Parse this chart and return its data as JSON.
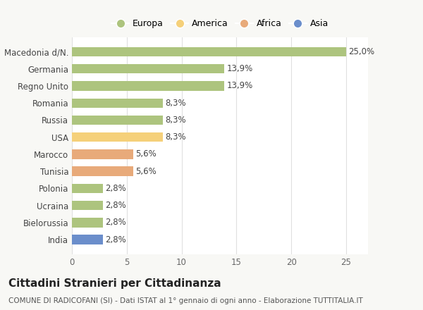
{
  "categories": [
    "Macedonia d/N.",
    "Germania",
    "Regno Unito",
    "Romania",
    "Russia",
    "USA",
    "Marocco",
    "Tunisia",
    "Polonia",
    "Ucraina",
    "Bielorussia",
    "India"
  ],
  "values": [
    25.0,
    13.9,
    13.9,
    8.3,
    8.3,
    8.3,
    5.6,
    5.6,
    2.8,
    2.8,
    2.8,
    2.8
  ],
  "labels": [
    "25,0%",
    "13,9%",
    "13,9%",
    "8,3%",
    "8,3%",
    "8,3%",
    "5,6%",
    "5,6%",
    "2,8%",
    "2,8%",
    "2,8%",
    "2,8%"
  ],
  "colors": [
    "#adc47e",
    "#adc47e",
    "#adc47e",
    "#adc47e",
    "#adc47e",
    "#f5d07a",
    "#e8aa7a",
    "#e8aa7a",
    "#adc47e",
    "#adc47e",
    "#adc47e",
    "#6b8ecb"
  ],
  "legend_entries": [
    {
      "label": "Europa",
      "color": "#adc47e"
    },
    {
      "label": "America",
      "color": "#f5d07a"
    },
    {
      "label": "Africa",
      "color": "#e8aa7a"
    },
    {
      "label": "Asia",
      "color": "#6b8ecb"
    }
  ],
  "xlim": [
    0,
    27
  ],
  "xticks": [
    0,
    5,
    10,
    15,
    20,
    25
  ],
  "title": "Cittadini Stranieri per Cittadinanza",
  "subtitle": "COMUNE DI RADICOFANI (SI) - Dati ISTAT al 1° gennaio di ogni anno - Elaborazione TUTTITALIA.IT",
  "plot_bg_color": "#ffffff",
  "fig_bg_color": "#f8f8f5",
  "grid_color": "#e0e0e0",
  "bar_height": 0.55,
  "label_fontsize": 8.5,
  "tick_fontsize": 8.5,
  "title_fontsize": 11,
  "subtitle_fontsize": 7.5
}
